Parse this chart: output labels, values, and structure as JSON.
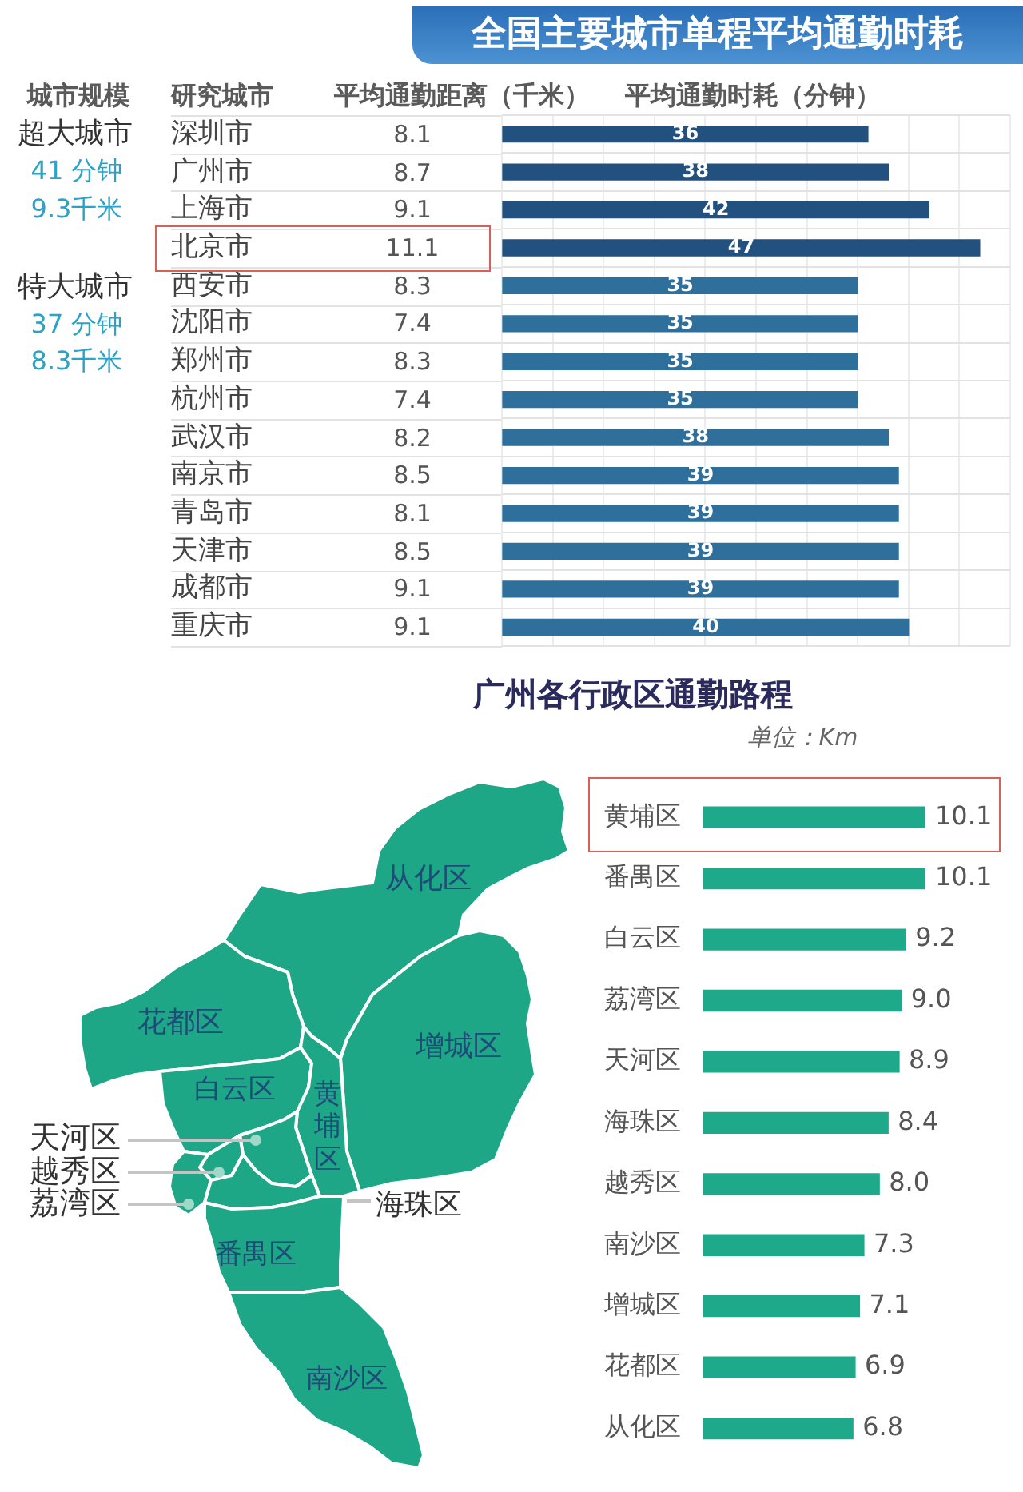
{
  "chart_data": [
    {
      "type": "other",
      "ylabel": "研究城市",
      "xlabel": "平均通勤距离（千米）",
      "categories": [
        "深圳市",
        "广州市",
        "上海市",
        "北京市",
        "西安市",
        "沈阳市",
        "郑州市",
        "杭州市",
        "武汉市",
        "南京市",
        "青岛市",
        "天津市",
        "成都市",
        "重庆市"
      ],
      "values": [
        8.1,
        8.7,
        9.1,
        11.1,
        8.3,
        7.4,
        8.3,
        7.4,
        8.2,
        8.5,
        8.1,
        8.5,
        9.1,
        9.1
      ],
      "data_labels": true,
      "annotations": [
        "城市规模",
        "超大城市",
        "41 分钟",
        "9.3千米",
        "特大城市",
        "37 分钟",
        "8.3千米"
      ]
    },
    {
      "type": "bar",
      "orientation": "horizontal",
      "title": "全国主要城市单程平均通勤时耗",
      "xlabel": "平均通勤时耗（分钟）",
      "categories": [
        null,
        null,
        null,
        null,
        null,
        null,
        null,
        null,
        null,
        null,
        null,
        null,
        null,
        null
      ],
      "values": [
        36,
        38,
        42,
        47,
        35,
        35,
        35,
        35,
        38,
        39,
        39,
        39,
        39,
        40
      ],
      "colors": [
        "#22507f",
        "#22507f",
        "#22507f",
        "#22507f",
        "#2e6f9b",
        "#2e6f9b",
        "#2e6f9b",
        "#2e6f9b",
        "#2e6f9b",
        "#2e6f9b",
        "#2e6f9b",
        "#2e6f9b",
        "#2e6f9b",
        "#2e6f9b"
      ],
      "xlim": [
        0,
        50
      ],
      "xticks": [
        {
          "value": 0,
          "label": null
        },
        {
          "value": 5,
          "label": null
        },
        {
          "value": 10,
          "label": null
        },
        {
          "value": 15,
          "label": null
        },
        {
          "value": 20,
          "label": null
        },
        {
          "value": 25,
          "label": null
        },
        {
          "value": 30,
          "label": null
        },
        {
          "value": 35,
          "label": null
        },
        {
          "value": 40,
          "label": null
        },
        {
          "value": 45,
          "label": null
        },
        {
          "value": 50,
          "label": null
        }
      ],
      "tick_labels": false,
      "grid": true,
      "data_labels": true
    },
    {
      "type": "bar",
      "orientation": "horizontal",
      "title": "广州各行政区通勤路程",
      "xlabel": "单位：Km",
      "categories": [
        "黄埔区",
        "番禺区",
        "白云区",
        "荔湾区",
        "天河区",
        "海珠区",
        "越秀区",
        "南沙区",
        "增城区",
        "花都区",
        "从化区"
      ],
      "values": [
        10.1,
        10.1,
        9.2,
        9.0,
        8.9,
        8.4,
        8.0,
        7.3,
        7.1,
        6.9,
        6.8
      ],
      "value_labels": [
        "10.1",
        "10.1",
        "9.2",
        "9.0",
        "8.9",
        "8.4",
        "8.0",
        "7.3",
        "7.1",
        "6.9",
        "6.8"
      ],
      "color": "#1fa98b",
      "tick_labels": "y",
      "annotations": [
        "从化区",
        "花都区",
        "增城区",
        "白云区",
        "黄埔区",
        "天河区",
        "越秀区",
        "荔湾区",
        "海珠区",
        "番禺区",
        "南沙区"
      ]
    }
  ]
}
